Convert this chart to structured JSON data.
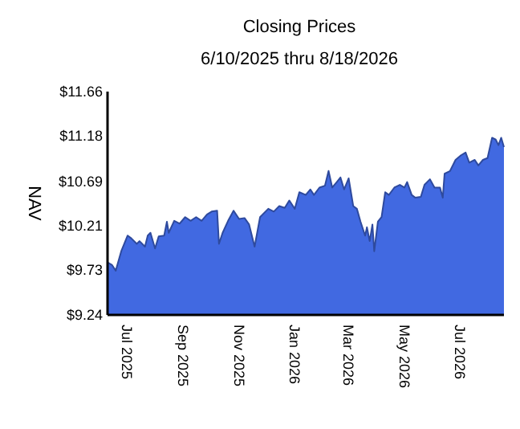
{
  "chart_data": {
    "type": "area",
    "title": "Closing Prices",
    "subtitle": "6/10/2025 thru 8/18/2026",
    "ylabel": "NAV",
    "x": [
      "2025-06-10",
      "2025-06-15",
      "2025-06-19",
      "2025-06-25",
      "2025-07-02",
      "2025-07-06",
      "2025-07-12",
      "2025-07-15",
      "2025-07-21",
      "2025-07-24",
      "2025-07-27",
      "2025-08-01",
      "2025-08-05",
      "2025-08-11",
      "2025-08-14",
      "2025-08-16",
      "2025-08-22",
      "2025-08-28",
      "2025-09-03",
      "2025-09-09",
      "2025-09-15",
      "2025-09-21",
      "2025-09-27",
      "2025-10-02",
      "2025-10-08",
      "2025-10-10",
      "2025-10-14",
      "2025-10-20",
      "2025-10-26",
      "2025-11-01",
      "2025-11-07",
      "2025-11-12",
      "2025-11-18",
      "2025-11-24",
      "2025-12-03",
      "2025-12-09",
      "2025-12-15",
      "2025-12-21",
      "2025-12-26",
      "2026-01-01",
      "2026-01-06",
      "2026-01-13",
      "2026-01-18",
      "2026-01-22",
      "2026-01-28",
      "2026-02-03",
      "2026-02-07",
      "2026-02-11",
      "2026-02-16",
      "2026-02-20",
      "2026-02-24",
      "2026-03-01",
      "2026-03-06",
      "2026-03-10",
      "2026-03-14",
      "2026-03-19",
      "2026-03-21",
      "2026-03-24",
      "2026-03-27",
      "2026-03-29",
      "2026-04-02",
      "2026-04-06",
      "2026-04-10",
      "2026-04-14",
      "2026-04-20",
      "2026-04-26",
      "2026-05-01",
      "2026-05-04",
      "2026-05-09",
      "2026-05-13",
      "2026-05-19",
      "2026-05-23",
      "2026-05-29",
      "2026-06-03",
      "2026-06-09",
      "2026-06-12",
      "2026-06-14",
      "2026-06-20",
      "2026-06-26",
      "2026-07-02",
      "2026-07-07",
      "2026-07-11",
      "2026-07-17",
      "2026-07-21",
      "2026-07-26",
      "2026-07-31",
      "2026-08-05",
      "2026-08-09",
      "2026-08-12",
      "2026-08-15",
      "2026-08-18"
    ],
    "series": [
      {
        "color": "#4169e1",
        "values": [
          9.81,
          9.78,
          9.72,
          9.93,
          10.1,
          10.07,
          10.01,
          10.04,
          9.98,
          10.1,
          10.13,
          9.96,
          10.09,
          10.1,
          10.25,
          10.13,
          10.26,
          10.23,
          10.3,
          10.26,
          10.3,
          10.26,
          10.33,
          10.36,
          10.37,
          10.01,
          10.13,
          10.26,
          10.37,
          10.28,
          10.29,
          10.22,
          9.98,
          10.3,
          10.39,
          10.36,
          10.42,
          10.4,
          10.48,
          10.39,
          10.57,
          10.54,
          10.6,
          10.54,
          10.62,
          10.64,
          10.8,
          10.62,
          10.68,
          10.73,
          10.6,
          10.72,
          10.42,
          10.39,
          10.25,
          10.1,
          10.19,
          10.04,
          10.22,
          9.93,
          10.25,
          10.3,
          10.57,
          10.54,
          10.62,
          10.65,
          10.62,
          10.68,
          10.54,
          10.51,
          10.52,
          10.65,
          10.71,
          10.62,
          10.62,
          10.51,
          10.77,
          10.8,
          10.92,
          10.97,
          11.0,
          10.89,
          10.92,
          10.86,
          10.92,
          10.94,
          11.16,
          11.14,
          11.08,
          11.16,
          11.06
        ]
      }
    ],
    "xlim": [
      "2025-06-10",
      "2026-08-18"
    ],
    "xticks": [
      {
        "value": "2025-07-01",
        "label": "Jul 2025"
      },
      {
        "value": "2025-09-01",
        "label": "Sep 2025"
      },
      {
        "value": "2025-11-01",
        "label": "Nov 2025"
      },
      {
        "value": "2026-01-01",
        "label": "Jan 2026"
      },
      {
        "value": "2026-03-01",
        "label": "Mar 2026"
      },
      {
        "value": "2026-05-01",
        "label": "May 2026"
      },
      {
        "value": "2026-07-01",
        "label": "Jul 2026"
      }
    ],
    "ylim": [
      9.24,
      11.66
    ],
    "yticks": [
      {
        "value": 9.24,
        "label": "$9.24"
      },
      {
        "value": 9.73,
        "label": "$9.73"
      },
      {
        "value": 10.21,
        "label": "$10.21"
      },
      {
        "value": 10.69,
        "label": "$10.69"
      },
      {
        "value": 11.18,
        "label": "$11.18"
      },
      {
        "value": 11.66,
        "label": "$11.66"
      }
    ]
  }
}
